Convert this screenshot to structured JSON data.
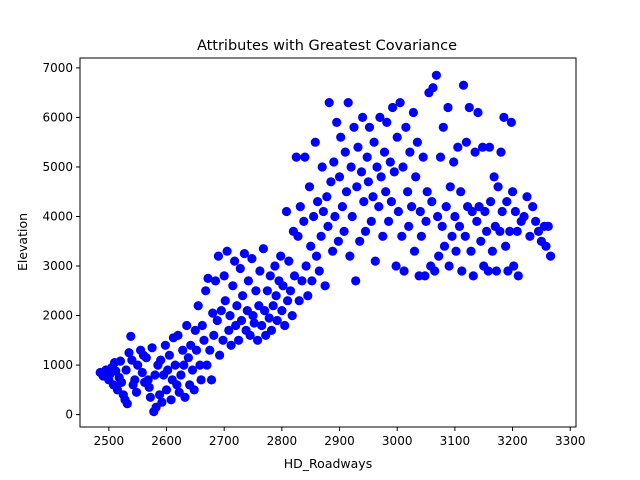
{
  "chart_data": {
    "type": "scatter",
    "title": "Attributes with Greatest Covariance",
    "xlabel": "HD_Roadways",
    "ylabel": "Elevation",
    "xlim": [
      2450,
      3310
    ],
    "ylim": [
      -250,
      7200
    ],
    "xticks": [
      2500,
      2600,
      2700,
      2800,
      2900,
      3000,
      3100,
      3200,
      3300
    ],
    "yticks": [
      0,
      1000,
      2000,
      3000,
      4000,
      5000,
      6000,
      7000
    ],
    "grid": false,
    "legend": "none",
    "marker_color": "#0000ff",
    "series": [
      {
        "points": [
          [
            2485,
            850
          ],
          [
            2490,
            780
          ],
          [
            2495,
            900
          ],
          [
            2500,
            700
          ],
          [
            2502,
            820
          ],
          [
            2505,
            950
          ],
          [
            2508,
            600
          ],
          [
            2510,
            1050
          ],
          [
            2512,
            880
          ],
          [
            2515,
            500
          ],
          [
            2518,
            750
          ],
          [
            2520,
            1080
          ],
          [
            2522,
            650
          ],
          [
            2525,
            400
          ],
          [
            2528,
            300
          ],
          [
            2530,
            900
          ],
          [
            2532,
            220
          ],
          [
            2535,
            1250
          ],
          [
            2538,
            1580
          ],
          [
            2540,
            1100
          ],
          [
            2542,
            600
          ],
          [
            2545,
            700
          ],
          [
            2548,
            450
          ],
          [
            2550,
            1000
          ],
          [
            2555,
            1300
          ],
          [
            2558,
            850
          ],
          [
            2560,
            1200
          ],
          [
            2562,
            650
          ],
          [
            2565,
            1150
          ],
          [
            2568,
            700
          ],
          [
            2570,
            550
          ],
          [
            2572,
            350
          ],
          [
            2575,
            1350
          ],
          [
            2578,
            60
          ],
          [
            2580,
            800
          ],
          [
            2582,
            150
          ],
          [
            2585,
            1000
          ],
          [
            2588,
            400
          ],
          [
            2590,
            1100
          ],
          [
            2592,
            250
          ],
          [
            2595,
            800
          ],
          [
            2598,
            1400
          ],
          [
            2600,
            500
          ],
          [
            2602,
            900
          ],
          [
            2605,
            1200
          ],
          [
            2608,
            300
          ],
          [
            2610,
            700
          ],
          [
            2612,
            1550
          ],
          [
            2615,
            1000
          ],
          [
            2618,
            600
          ],
          [
            2620,
            1600
          ],
          [
            2622,
            450
          ],
          [
            2625,
            800
          ],
          [
            2628,
            1300
          ],
          [
            2630,
            1000
          ],
          [
            2632,
            350
          ],
          [
            2635,
            1800
          ],
          [
            2638,
            1150
          ],
          [
            2640,
            600
          ],
          [
            2642,
            1400
          ],
          [
            2645,
            900
          ],
          [
            2648,
            500
          ],
          [
            2650,
            1700
          ],
          [
            2652,
            1300
          ],
          [
            2655,
            2200
          ],
          [
            2658,
            1000
          ],
          [
            2660,
            700
          ],
          [
            2662,
            1800
          ],
          [
            2665,
            1500
          ],
          [
            2668,
            2500
          ],
          [
            2670,
            1000
          ],
          [
            2672,
            2750
          ],
          [
            2675,
            1300
          ],
          [
            2678,
            700
          ],
          [
            2680,
            2050
          ],
          [
            2682,
            1600
          ],
          [
            2685,
            2700
          ],
          [
            2688,
            1900
          ],
          [
            2690,
            3200
          ],
          [
            2692,
            1200
          ],
          [
            2695,
            2100
          ],
          [
            2698,
            1500
          ],
          [
            2700,
            2800
          ],
          [
            2702,
            2300
          ],
          [
            2705,
            3300
          ],
          [
            2708,
            1700
          ],
          [
            2710,
            2000
          ],
          [
            2712,
            1400
          ],
          [
            2715,
            2600
          ],
          [
            2718,
            3100
          ],
          [
            2720,
            1800
          ],
          [
            2722,
            2200
          ],
          [
            2725,
            1500
          ],
          [
            2728,
            2950
          ],
          [
            2730,
            1900
          ],
          [
            2732,
            2400
          ],
          [
            2735,
            3250
          ],
          [
            2738,
            1700
          ],
          [
            2740,
            2100
          ],
          [
            2742,
            2700
          ],
          [
            2745,
            1600
          ],
          [
            2748,
            3150
          ],
          [
            2750,
            2000
          ],
          [
            2752,
            1850
          ],
          [
            2755,
            2500
          ],
          [
            2758,
            1500
          ],
          [
            2760,
            2200
          ],
          [
            2762,
            2900
          ],
          [
            2765,
            1800
          ],
          [
            2768,
            3350
          ],
          [
            2770,
            2100
          ],
          [
            2772,
            1600
          ],
          [
            2775,
            2500
          ],
          [
            2778,
            1950
          ],
          [
            2780,
            2800
          ],
          [
            2782,
            1700
          ],
          [
            2785,
            2200
          ],
          [
            2788,
            3000
          ],
          [
            2790,
            2400
          ],
          [
            2792,
            1900
          ],
          [
            2795,
            2700
          ],
          [
            2798,
            3200
          ],
          [
            2800,
            2100
          ],
          [
            2802,
            2600
          ],
          [
            2805,
            1800
          ],
          [
            2808,
            4100
          ],
          [
            2810,
            2300
          ],
          [
            2812,
            3100
          ],
          [
            2815,
            2500
          ],
          [
            2818,
            2000
          ],
          [
            2820,
            3700
          ],
          [
            2822,
            2800
          ],
          [
            2825,
            5200
          ],
          [
            2828,
            3600
          ],
          [
            2830,
            2300
          ],
          [
            2832,
            4200
          ],
          [
            2835,
            2700
          ],
          [
            2838,
            3900
          ],
          [
            2840,
            5200
          ],
          [
            2842,
            3000
          ],
          [
            2845,
            2400
          ],
          [
            2848,
            4600
          ],
          [
            2850,
            3400
          ],
          [
            2852,
            2700
          ],
          [
            2855,
            4000
          ],
          [
            2858,
            5500
          ],
          [
            2860,
            3200
          ],
          [
            2862,
            4300
          ],
          [
            2865,
            2900
          ],
          [
            2868,
            3600
          ],
          [
            2870,
            5000
          ],
          [
            2872,
            4100
          ],
          [
            2875,
            2600
          ],
          [
            2878,
            4400
          ],
          [
            2880,
            3800
          ],
          [
            2882,
            6300
          ],
          [
            2885,
            4700
          ],
          [
            2888,
            3300
          ],
          [
            2890,
            5100
          ],
          [
            2892,
            4000
          ],
          [
            2895,
            5900
          ],
          [
            2898,
            3500
          ],
          [
            2900,
            4800
          ],
          [
            2902,
            5600
          ],
          [
            2905,
            4200
          ],
          [
            2908,
            3700
          ],
          [
            2910,
            5300
          ],
          [
            2912,
            4500
          ],
          [
            2915,
            6300
          ],
          [
            2918,
            3200
          ],
          [
            2920,
            5000
          ],
          [
            2922,
            4000
          ],
          [
            2925,
            5800
          ],
          [
            2928,
            2700
          ],
          [
            2930,
            4600
          ],
          [
            2932,
            5400
          ],
          [
            2935,
            3500
          ],
          [
            2938,
            4900
          ],
          [
            2940,
            6000
          ],
          [
            2942,
            4300
          ],
          [
            2945,
            3700
          ],
          [
            2948,
            5200
          ],
          [
            2950,
            4700
          ],
          [
            2952,
            5800
          ],
          [
            2955,
            3900
          ],
          [
            2958,
            4400
          ],
          [
            2960,
            5500
          ],
          [
            2962,
            3100
          ],
          [
            2965,
            5000
          ],
          [
            2968,
            4200
          ],
          [
            2970,
            6000
          ],
          [
            2972,
            4800
          ],
          [
            2975,
            3600
          ],
          [
            2978,
            5300
          ],
          [
            2980,
            4500
          ],
          [
            2982,
            5900
          ],
          [
            2985,
            3900
          ],
          [
            2988,
            5100
          ],
          [
            2990,
            4300
          ],
          [
            2992,
            6200
          ],
          [
            2995,
            4900
          ],
          [
            2998,
            3000
          ],
          [
            3000,
            5600
          ],
          [
            3002,
            4100
          ],
          [
            3005,
            6300
          ],
          [
            3008,
            3600
          ],
          [
            3010,
            5000
          ],
          [
            3012,
            2900
          ],
          [
            3015,
            5800
          ],
          [
            3018,
            4500
          ],
          [
            3020,
            3800
          ],
          [
            3022,
            5300
          ],
          [
            3025,
            4200
          ],
          [
            3028,
            6100
          ],
          [
            3030,
            3300
          ],
          [
            3032,
            4800
          ],
          [
            3035,
            5500
          ],
          [
            3038,
            2800
          ],
          [
            3040,
            4100
          ],
          [
            3042,
            3600
          ],
          [
            3045,
            5200
          ],
          [
            3048,
            2800
          ],
          [
            3050,
            3900
          ],
          [
            3052,
            4500
          ],
          [
            3055,
            6500
          ],
          [
            3058,
            3000
          ],
          [
            3060,
            4300
          ],
          [
            3062,
            6600
          ],
          [
            3065,
            2900
          ],
          [
            3068,
            6850
          ],
          [
            3070,
            4000
          ],
          [
            3072,
            3200
          ],
          [
            3075,
            5200
          ],
          [
            3078,
            3800
          ],
          [
            3080,
            5800
          ],
          [
            3082,
            3400
          ],
          [
            3085,
            4200
          ],
          [
            3088,
            6200
          ],
          [
            3090,
            3000
          ],
          [
            3092,
            4600
          ],
          [
            3095,
            3600
          ],
          [
            3098,
            5100
          ],
          [
            3100,
            4000
          ],
          [
            3102,
            3300
          ],
          [
            3105,
            5400
          ],
          [
            3108,
            3800
          ],
          [
            3110,
            4500
          ],
          [
            3112,
            2900
          ],
          [
            3115,
            6650
          ],
          [
            3118,
            3600
          ],
          [
            3120,
            5500
          ],
          [
            3122,
            4200
          ],
          [
            3125,
            6200
          ],
          [
            3128,
            3300
          ],
          [
            3130,
            4100
          ],
          [
            3132,
            2800
          ],
          [
            3135,
            5300
          ],
          [
            3138,
            3900
          ],
          [
            3140,
            6100
          ],
          [
            3142,
            4200
          ],
          [
            3145,
            3500
          ],
          [
            3148,
            5400
          ],
          [
            3150,
            3000
          ],
          [
            3152,
            4100
          ],
          [
            3155,
            3700
          ],
          [
            3158,
            2900
          ],
          [
            3160,
            5400
          ],
          [
            3162,
            4300
          ],
          [
            3165,
            3300
          ],
          [
            3168,
            4800
          ],
          [
            3170,
            3800
          ],
          [
            3172,
            2900
          ],
          [
            3175,
            4600
          ],
          [
            3178,
            3700
          ],
          [
            3180,
            5300
          ],
          [
            3182,
            4100
          ],
          [
            3185,
            6000
          ],
          [
            3188,
            3400
          ],
          [
            3190,
            4300
          ],
          [
            3192,
            2900
          ],
          [
            3195,
            3700
          ],
          [
            3198,
            5900
          ],
          [
            3200,
            4500
          ],
          [
            3202,
            3000
          ],
          [
            3205,
            4100
          ],
          [
            3208,
            3700
          ],
          [
            3210,
            2800
          ],
          [
            3215,
            3900
          ],
          [
            3220,
            4000
          ],
          [
            3225,
            4400
          ],
          [
            3230,
            3600
          ],
          [
            3235,
            4200
          ],
          [
            3240,
            3900
          ],
          [
            3245,
            3700
          ],
          [
            3250,
            3500
          ],
          [
            3255,
            3800
          ],
          [
            3258,
            3400
          ],
          [
            3262,
            3800
          ],
          [
            3266,
            3200
          ]
        ]
      }
    ]
  }
}
